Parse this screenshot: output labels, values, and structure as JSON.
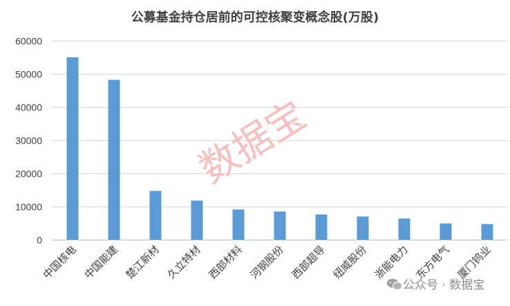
{
  "chart_data": {
    "type": "bar",
    "title": "公募基金持仓居前的可控核聚变概念股(万股)",
    "categories": [
      "中国核电",
      "中国能建",
      "楚江新材",
      "久立特材",
      "西部材料",
      "河钢股份",
      "西部超导",
      "纽威股份",
      "浙能电力",
      "东方电气",
      "厦门钨业"
    ],
    "values": [
      55000,
      48200,
      14700,
      11800,
      9100,
      8500,
      7600,
      7000,
      6400,
      4900,
      4700
    ],
    "yticks": [
      "0",
      "10000",
      "20000",
      "30000",
      "40000",
      "50000",
      "60000"
    ],
    "ylim": [
      0,
      60000
    ],
    "grid": true,
    "legend": "none",
    "bar_color": "#5b9bd5"
  },
  "watermark": {
    "text": "数据宝"
  },
  "footer": {
    "brand_text": "公众号 · 数据宝",
    "icon": "wechat-icon"
  }
}
